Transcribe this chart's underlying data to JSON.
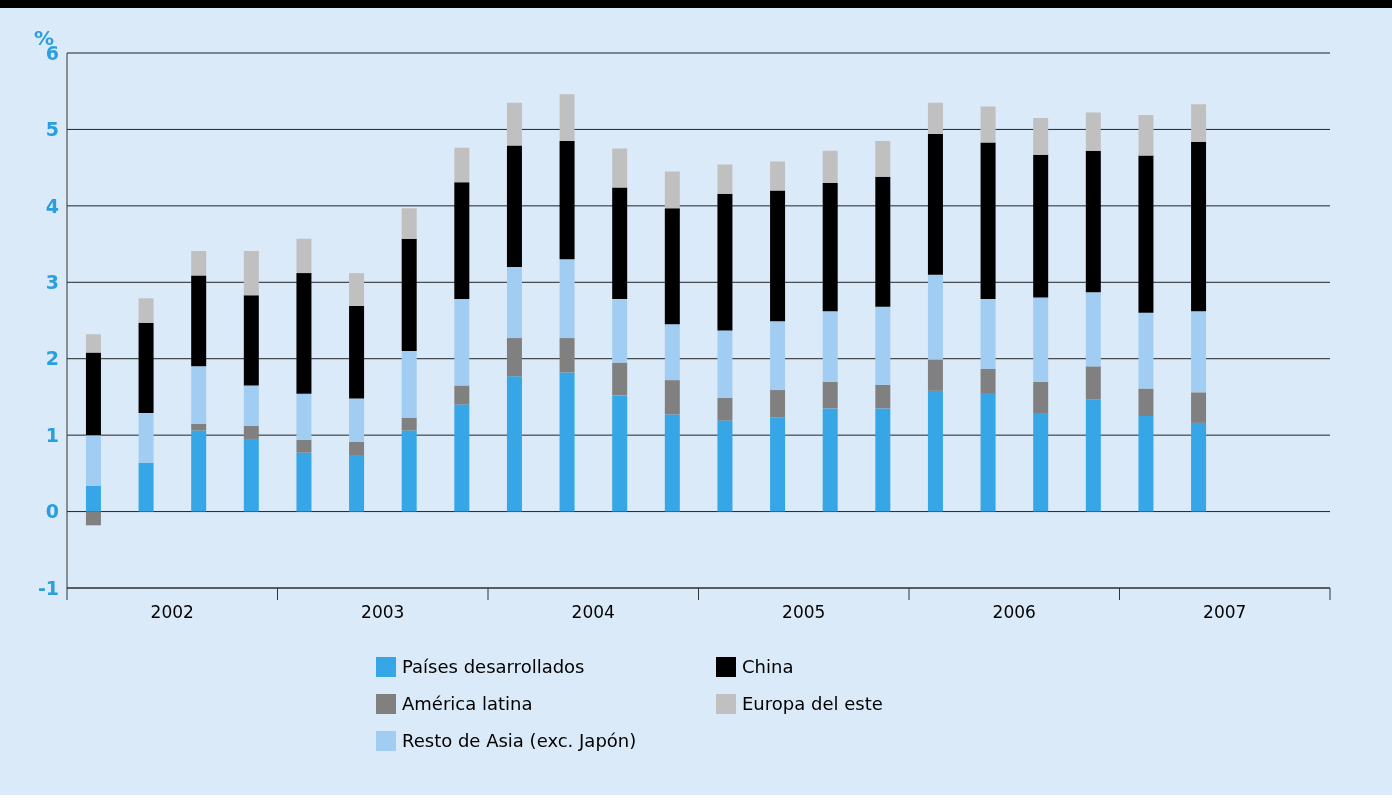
{
  "chart_data": {
    "type": "bar",
    "stacked": true,
    "ylabel": "%",
    "categories": [
      null,
      "2002",
      null,
      null,
      null,
      "2003",
      null,
      null,
      null,
      "2004",
      null,
      null,
      null,
      "2005",
      null,
      null,
      null,
      "2006",
      null,
      null,
      null,
      "2007",
      null,
      null
    ],
    "series": [
      {
        "name": "Países desarrollados",
        "color": "#36a6e6",
        "values": [
          0.34,
          0.64,
          1.06,
          0.95,
          0.77,
          0.74,
          1.06,
          1.4,
          1.77,
          1.82,
          1.52,
          1.27,
          1.19,
          1.23,
          1.35,
          1.35,
          1.58,
          1.54,
          1.29,
          1.47,
          1.25,
          1.16,
          null,
          null
        ]
      },
      {
        "name": "América latina",
        "color": "#808080",
        "values": [
          -0.18,
          0,
          0.09,
          0.17,
          0.17,
          0.17,
          0.17,
          0.25,
          0.5,
          0.45,
          0.43,
          0.45,
          0.3,
          0.36,
          0.35,
          0.31,
          0.41,
          0.33,
          0.41,
          0.43,
          0.36,
          0.4,
          null,
          null
        ]
      },
      {
        "name": "Resto de Asia (exc. Japón)",
        "color": "#a2cdf2",
        "values": [
          0.66,
          0.65,
          0.75,
          0.53,
          0.6,
          0.57,
          0.87,
          1.13,
          0.93,
          1.03,
          0.83,
          0.73,
          0.88,
          0.9,
          0.92,
          1.02,
          1.11,
          0.91,
          1.1,
          0.97,
          0.99,
          1.06,
          null,
          null
        ]
      },
      {
        "name": "China",
        "color": "#000000",
        "values": [
          1.08,
          1.18,
          1.19,
          1.18,
          1.58,
          1.21,
          1.47,
          1.53,
          1.59,
          1.55,
          1.46,
          1.52,
          1.79,
          1.71,
          1.68,
          1.7,
          1.84,
          2.05,
          1.87,
          1.85,
          2.06,
          2.22,
          null,
          null
        ]
      },
      {
        "name": "Europa del este",
        "color": "#c0c0c0",
        "values": [
          0.24,
          0.32,
          0.32,
          0.58,
          0.45,
          0.43,
          0.4,
          0.45,
          0.56,
          0.61,
          0.51,
          0.48,
          0.38,
          0.38,
          0.42,
          0.47,
          0.41,
          0.47,
          0.48,
          0.5,
          0.53,
          0.49,
          null,
          null
        ]
      }
    ],
    "ylim": [
      -1,
      6
    ],
    "yticks": [
      -1,
      0,
      1,
      2,
      3,
      4,
      5,
      6
    ],
    "grid": "y",
    "legend": "bottom"
  }
}
